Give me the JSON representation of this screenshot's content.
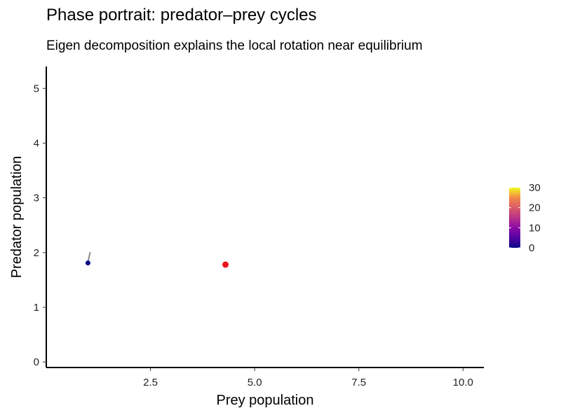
{
  "chart_data": {
    "type": "scatter",
    "title": "Phase portrait: predator–prey cycles",
    "subtitle": "Eigen decomposition explains the local rotation near equilibrium",
    "xlabel": "Prey population",
    "ylabel": "Predator population",
    "xlim": [
      0.0,
      10.5
    ],
    "ylim": [
      -0.1,
      5.4
    ],
    "x_ticks": [
      2.5,
      5.0,
      7.5,
      10.0
    ],
    "x_tick_labels": [
      "2.5",
      "5.0",
      "7.5",
      "10.0"
    ],
    "y_ticks": [
      0,
      1,
      2,
      3,
      4,
      5
    ],
    "y_tick_labels": [
      "0",
      "1",
      "2",
      "3",
      "4",
      "5"
    ],
    "grid": false,
    "trajectory": {
      "x": [
        1.05,
        1.0
      ],
      "y": [
        2.0,
        1.82
      ],
      "color": "#8a8a8a"
    },
    "start_point": {
      "x": 1.0,
      "y": 1.81,
      "color": "#0d0887"
    },
    "equilibrium_point": {
      "x": 4.3,
      "y": 1.78,
      "color": "#e8161c"
    },
    "colorbar": {
      "palette": "plasma",
      "min": 0,
      "max": 30,
      "ticks": [
        0,
        10,
        20,
        30
      ],
      "tick_labels": [
        "0",
        "10",
        "20",
        "30"
      ],
      "placement": "right"
    }
  }
}
